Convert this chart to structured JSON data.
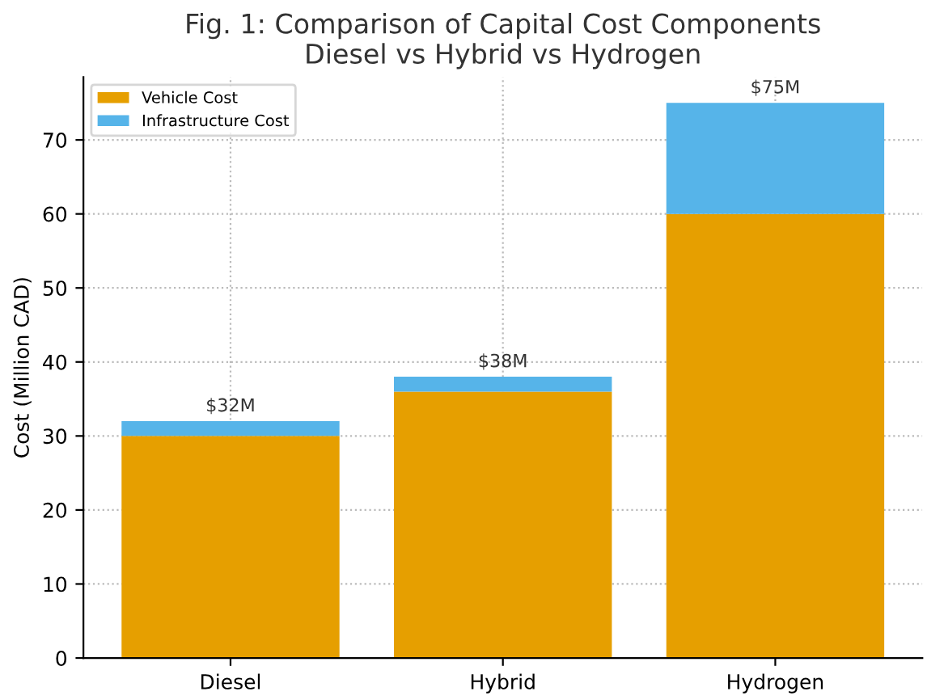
{
  "chart_data": {
    "type": "bar",
    "title": "Fig. 1: Comparison of Capital Cost Components\nDiesel vs Hybrid vs Hydrogen",
    "ylabel": "Cost (Million CAD)",
    "categories": [
      "Diesel",
      "Hybrid",
      "Hydrogen"
    ],
    "stacked": true,
    "series": [
      {
        "name": "Vehicle Cost",
        "color": "#e69f00",
        "values": [
          30,
          36,
          60
        ]
      },
      {
        "name": "Infrastructure Cost",
        "color": "#56b4e9",
        "values": [
          2,
          2,
          15
        ]
      }
    ],
    "totals": [
      "$32M",
      "$38M",
      "$75M"
    ],
    "ylim": [
      0,
      78.5
    ],
    "yticks": [
      0,
      10,
      20,
      30,
      40,
      50,
      60,
      70
    ],
    "grid": true,
    "legend": "top left"
  }
}
